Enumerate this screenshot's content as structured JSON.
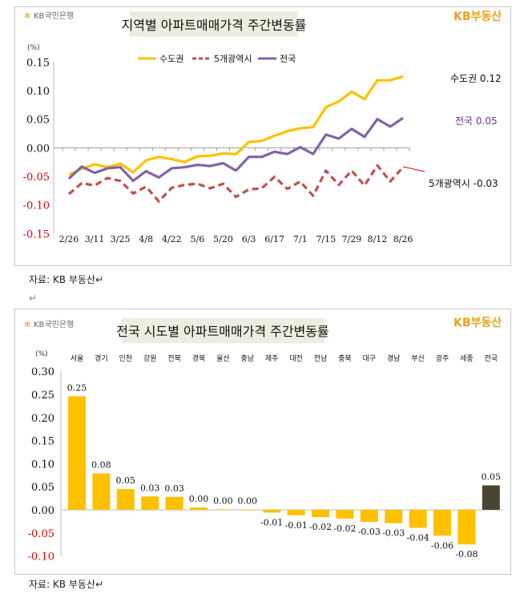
{
  "brand": {
    "bank_logo": "KB국민은행",
    "kb_real_estate": "KB부동산",
    "accent": "#E8A317"
  },
  "notes": {
    "source_top": "자료: KB 부동산↵",
    "blank_line": "↵",
    "source_bottom": "자료: KB 부동산↵"
  },
  "chart_data": [
    {
      "type": "line",
      "title": "지역별 아파트매매가격 주간변동률",
      "ylabel": "(%)",
      "ylim": [
        -0.15,
        0.15
      ],
      "yticks": [
        "0.15",
        "0.10",
        "0.05",
        "0.00",
        "-0.05",
        "-0.10",
        "-0.15"
      ],
      "negative_tick_color": "#E00000",
      "x_tick_labels": [
        "2/26",
        "3/11",
        "3/25",
        "4/8",
        "4/22",
        "5/6",
        "5/20",
        "6/3",
        "6/17",
        "7/1",
        "7/15",
        "7/29",
        "8/12",
        "8/26"
      ],
      "legend_placement": "top",
      "series": [
        {
          "name": "수도권",
          "color": "#FFC000",
          "style": "solid",
          "end_label": "수도권 0.12",
          "values": [
            -0.047,
            -0.037,
            -0.029,
            -0.034,
            -0.028,
            -0.043,
            -0.022,
            -0.016,
            -0.02,
            -0.025,
            -0.015,
            -0.014,
            -0.01,
            -0.011,
            0.01,
            0.012,
            0.021,
            0.029,
            0.034,
            0.036,
            0.071,
            0.081,
            0.098,
            0.085,
            0.118,
            0.118,
            0.125
          ]
        },
        {
          "name": "5개광역시",
          "color": "#C0504D",
          "style": "dashed",
          "end_label": "5개광역시 -0.03",
          "values": [
            -0.081,
            -0.062,
            -0.066,
            -0.053,
            -0.058,
            -0.08,
            -0.068,
            -0.094,
            -0.07,
            -0.065,
            -0.063,
            -0.071,
            -0.063,
            -0.086,
            -0.073,
            -0.071,
            -0.051,
            -0.072,
            -0.059,
            -0.084,
            -0.04,
            -0.065,
            -0.04,
            -0.066,
            -0.031,
            -0.059,
            -0.034
          ]
        },
        {
          "name": "전국",
          "color": "#8064A2",
          "style": "solid",
          "end_label": "전국 0.05",
          "end_label_color": "#7030A0",
          "values": [
            -0.054,
            -0.033,
            -0.044,
            -0.036,
            -0.034,
            -0.058,
            -0.041,
            -0.052,
            -0.036,
            -0.034,
            -0.03,
            -0.032,
            -0.027,
            -0.04,
            -0.016,
            -0.016,
            -0.007,
            -0.011,
            0.001,
            -0.011,
            0.023,
            0.016,
            0.033,
            0.019,
            0.05,
            0.037,
            0.052
          ]
        }
      ]
    },
    {
      "type": "bar",
      "title": "전국 시도별 아파트매매가격 주간변동률",
      "ylabel": "(%)",
      "ylim": [
        -0.1,
        0.3
      ],
      "yticks": [
        "0.30",
        "0.25",
        "0.20",
        "0.15",
        "0.10",
        "0.05",
        "0.00",
        "-0.05",
        "-0.10"
      ],
      "negative_tick_color": "#E00000",
      "categories": [
        "서울",
        "경기",
        "인천",
        "강원",
        "전북",
        "경북",
        "울산",
        "충남",
        "제주",
        "대전",
        "전남",
        "충북",
        "대구",
        "경남",
        "부산",
        "광주",
        "세종",
        "전국"
      ],
      "values": [
        0.246,
        0.079,
        0.045,
        0.029,
        0.028,
        0.005,
        0.001,
        0.001,
        -0.006,
        -0.012,
        -0.016,
        -0.019,
        -0.026,
        -0.029,
        -0.039,
        -0.056,
        -0.075,
        0.053
      ],
      "data_labels": [
        "0.25",
        "0.08",
        "0.05",
        "0.03",
        "0.03",
        "0.00",
        "0.00",
        "0.00",
        "-0.01",
        "-0.01",
        "-0.02",
        "-0.02",
        "-0.03",
        "-0.03",
        "-0.04",
        "-0.06",
        "-0.08",
        "0.05"
      ],
      "bar_color": "#FFC000",
      "highlight_color": "#4A4430"
    }
  ]
}
